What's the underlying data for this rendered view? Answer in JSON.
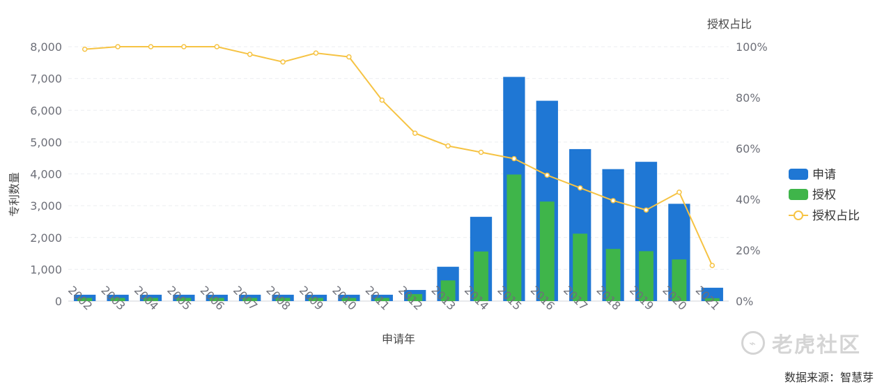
{
  "chart_data": {
    "type": "bar",
    "xlabel": "申请年",
    "ylabel_left": "专利数量",
    "ylabel_right": "授权占比",
    "ylim_left": [
      0,
      8000
    ],
    "yticks_left": [
      "0",
      "1,000",
      "2,000",
      "3,000",
      "4,000",
      "5,000",
      "6,000",
      "7,000",
      "8,000"
    ],
    "ylim_right": [
      0,
      100
    ],
    "yticks_right": [
      "0%",
      "20%",
      "40%",
      "60%",
      "80%",
      "100%"
    ],
    "categories": [
      "2002",
      "2003",
      "2004",
      "2005",
      "2006",
      "2007",
      "2008",
      "2009",
      "2010",
      "2011",
      "2012",
      "2013",
      "2014",
      "2015",
      "2016",
      "2017",
      "2018",
      "2019",
      "2020",
      "2021"
    ],
    "series": [
      {
        "name": "申请",
        "type": "bar",
        "color": "#1f77d4",
        "values": [
          200,
          200,
          200,
          200,
          200,
          200,
          200,
          200,
          200,
          200,
          350,
          1080,
          2650,
          7050,
          6300,
          4780,
          4150,
          4380,
          3060,
          420
        ]
      },
      {
        "name": "授权",
        "type": "bar",
        "color": "#3fb54a",
        "values": [
          100,
          100,
          100,
          100,
          100,
          100,
          100,
          100,
          100,
          100,
          220,
          650,
          1560,
          3980,
          3130,
          2120,
          1640,
          1570,
          1310,
          90
        ]
      },
      {
        "name": "授权占比",
        "type": "line",
        "axis": "right",
        "color": "#f6c343",
        "values": [
          99,
          100,
          100,
          100,
          100,
          97,
          94,
          97.5,
          96,
          79,
          66,
          61,
          58.5,
          56,
          49.5,
          44.5,
          39.5,
          35.8,
          42.8,
          14
        ]
      }
    ],
    "grid": true,
    "legend_position": "right"
  },
  "source_text": "数据来源：智慧芽",
  "watermark": {
    "text": "老虎社区",
    "icon": "tiger-logo-icon"
  }
}
